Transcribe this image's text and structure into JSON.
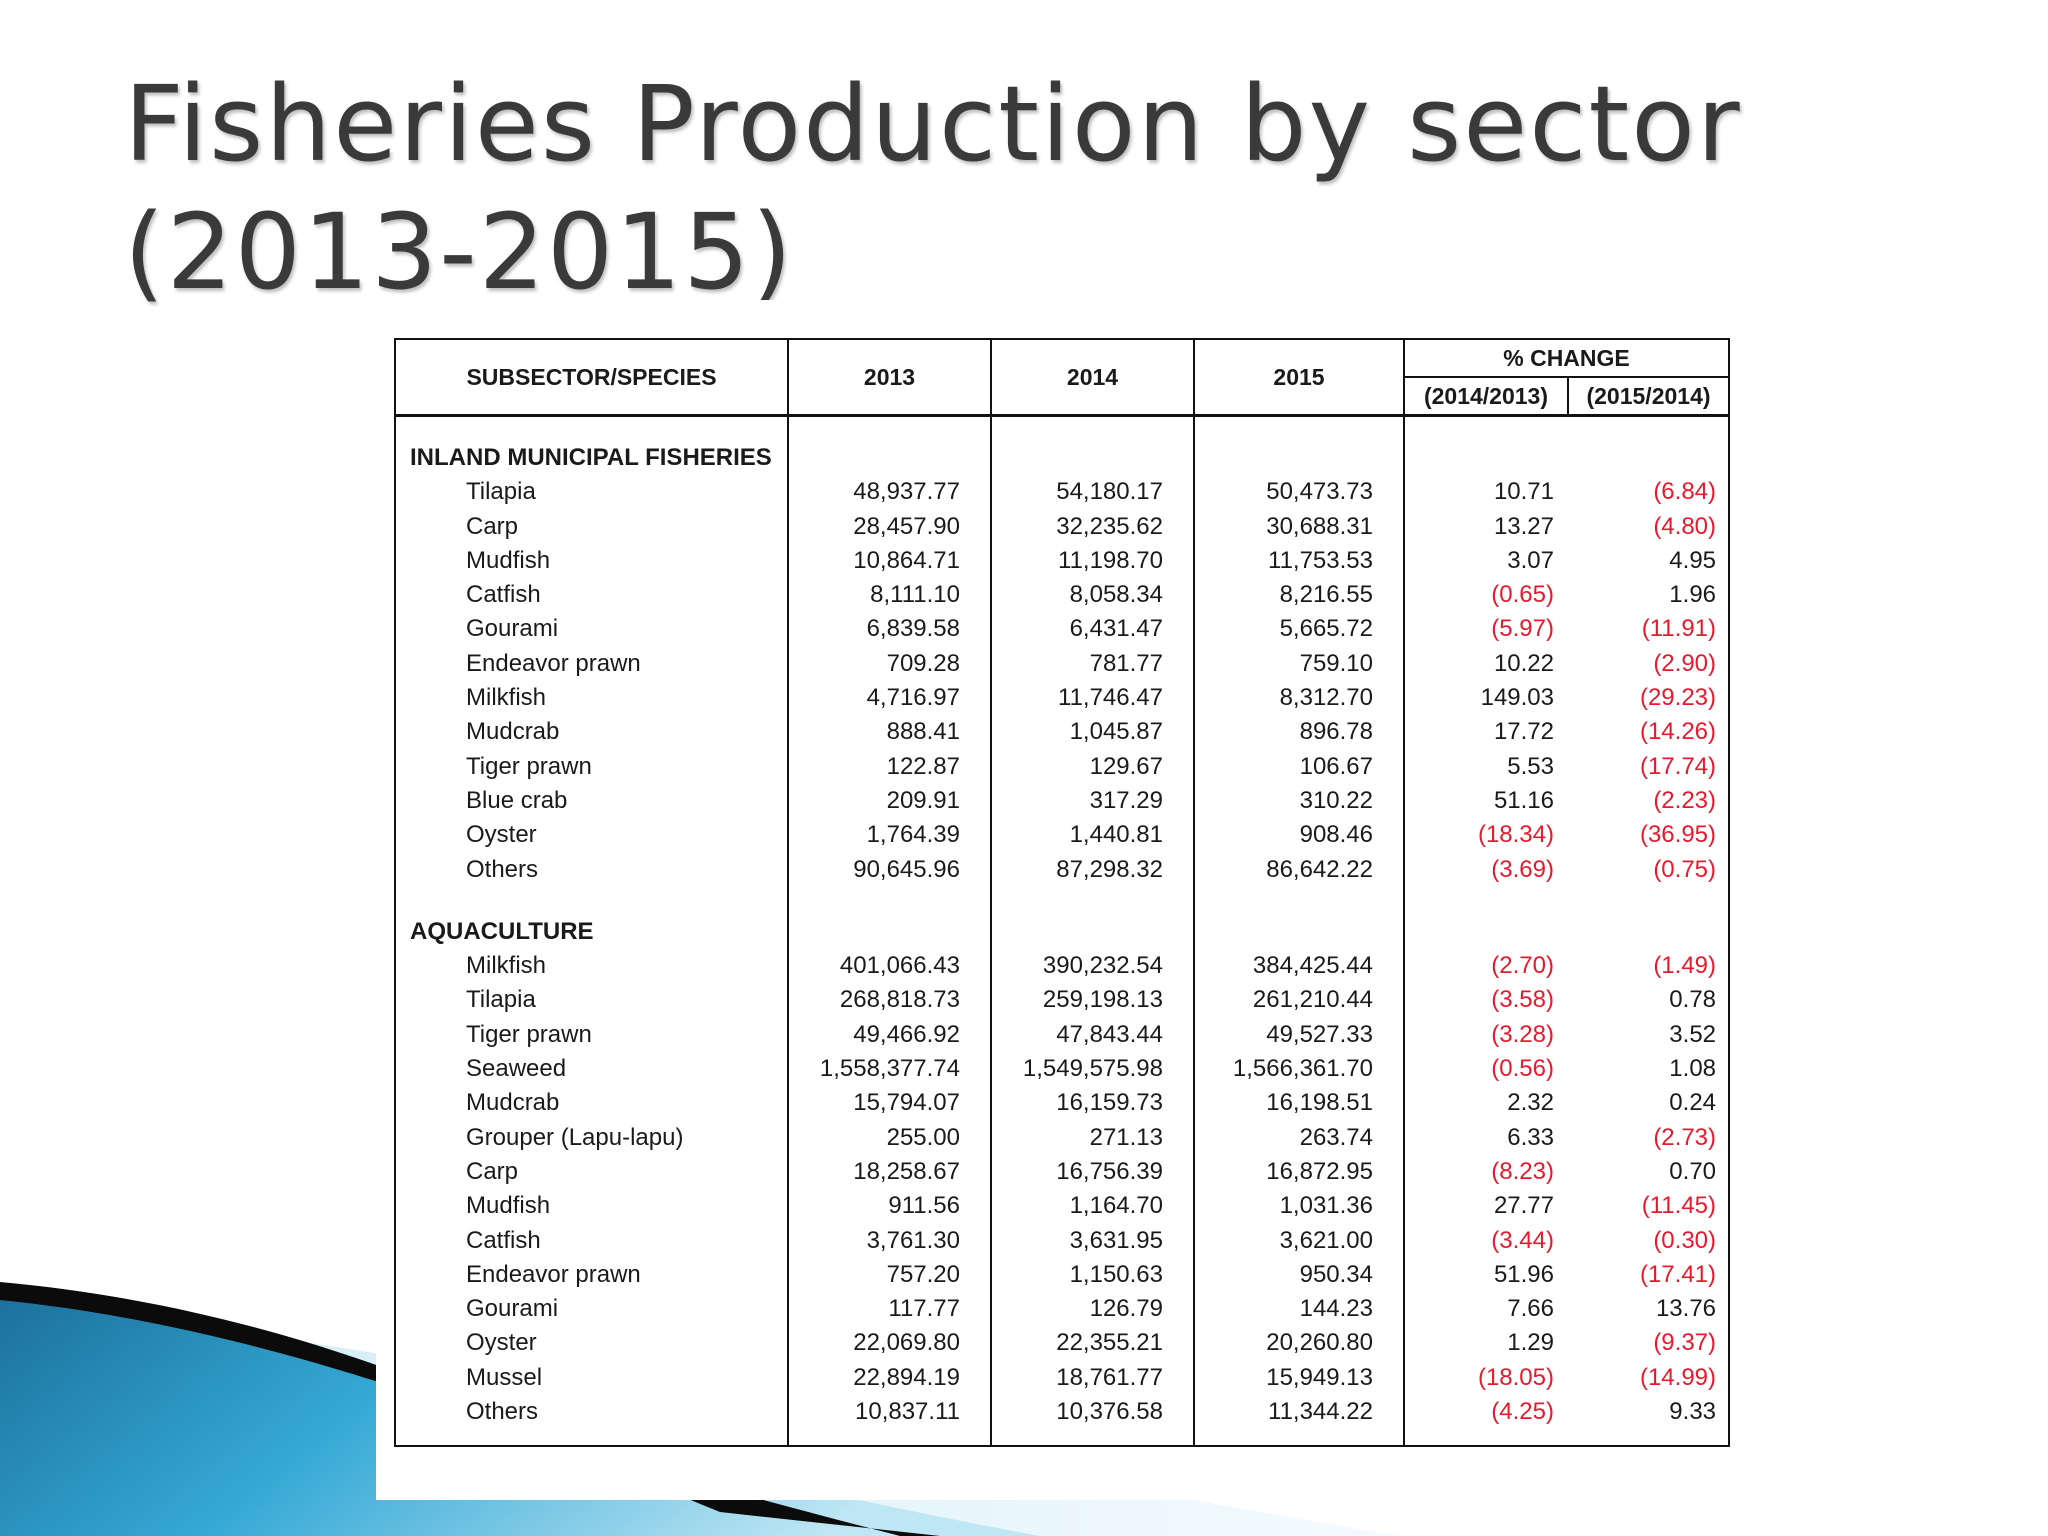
{
  "slide": {
    "title_line1": "Fisheries Production by sector",
    "title_line2": "(2013-2015)"
  },
  "table": {
    "headers": {
      "species": "SUBSECTOR/SPECIES",
      "y2013": "2013",
      "y2014": "2014",
      "y2015": "2015",
      "pct_change": "% CHANGE",
      "pct_2014": "(2014/2013)",
      "pct_2015": "(2015/2014)"
    },
    "sections": [
      {
        "title": "INLAND MUNICIPAL FISHERIES",
        "rows": [
          {
            "name": "Tilapia",
            "y2013": "48,937.77",
            "y2014": "54,180.17",
            "y2015": "50,473.73",
            "p1": "10.71",
            "p2": "(6.84)"
          },
          {
            "name": "Carp",
            "y2013": "28,457.90",
            "y2014": "32,235.62",
            "y2015": "30,688.31",
            "p1": "13.27",
            "p2": "(4.80)"
          },
          {
            "name": "Mudfish",
            "y2013": "10,864.71",
            "y2014": "11,198.70",
            "y2015": "11,753.53",
            "p1": "3.07",
            "p2": "4.95"
          },
          {
            "name": "Catfish",
            "y2013": "8,111.10",
            "y2014": "8,058.34",
            "y2015": "8,216.55",
            "p1": "(0.65)",
            "p2": "1.96"
          },
          {
            "name": "Gourami",
            "y2013": "6,839.58",
            "y2014": "6,431.47",
            "y2015": "5,665.72",
            "p1": "(5.97)",
            "p2": "(11.91)"
          },
          {
            "name": "Endeavor prawn",
            "y2013": "709.28",
            "y2014": "781.77",
            "y2015": "759.10",
            "p1": "10.22",
            "p2": "(2.90)"
          },
          {
            "name": "Milkfish",
            "y2013": "4,716.97",
            "y2014": "11,746.47",
            "y2015": "8,312.70",
            "p1": "149.03",
            "p2": "(29.23)"
          },
          {
            "name": "Mudcrab",
            "y2013": "888.41",
            "y2014": "1,045.87",
            "y2015": "896.78",
            "p1": "17.72",
            "p2": "(14.26)"
          },
          {
            "name": "Tiger prawn",
            "y2013": "122.87",
            "y2014": "129.67",
            "y2015": "106.67",
            "p1": "5.53",
            "p2": "(17.74)"
          },
          {
            "name": "Blue crab",
            "y2013": "209.91",
            "y2014": "317.29",
            "y2015": "310.22",
            "p1": "51.16",
            "p2": "(2.23)"
          },
          {
            "name": "Oyster",
            "y2013": "1,764.39",
            "y2014": "1,440.81",
            "y2015": "908.46",
            "p1": "(18.34)",
            "p2": "(36.95)"
          },
          {
            "name": "Others",
            "y2013": "90,645.96",
            "y2014": "87,298.32",
            "y2015": "86,642.22",
            "p1": "(3.69)",
            "p2": "(0.75)"
          }
        ]
      },
      {
        "title": "AQUACULTURE",
        "rows": [
          {
            "name": "Milkfish",
            "y2013": "401,066.43",
            "y2014": "390,232.54",
            "y2015": "384,425.44",
            "p1": "(2.70)",
            "p2": "(1.49)"
          },
          {
            "name": "Tilapia",
            "y2013": "268,818.73",
            "y2014": "259,198.13",
            "y2015": "261,210.44",
            "p1": "(3.58)",
            "p2": "0.78"
          },
          {
            "name": "Tiger prawn",
            "y2013": "49,466.92",
            "y2014": "47,843.44",
            "y2015": "49,527.33",
            "p1": "(3.28)",
            "p2": "3.52"
          },
          {
            "name": "Seaweed",
            "y2013": "1,558,377.74",
            "y2014": "1,549,575.98",
            "y2015": "1,566,361.70",
            "p1": "(0.56)",
            "p2": "1.08"
          },
          {
            "name": "Mudcrab",
            "y2013": "15,794.07",
            "y2014": "16,159.73",
            "y2015": "16,198.51",
            "p1": "2.32",
            "p2": "0.24"
          },
          {
            "name": "Grouper (Lapu-lapu)",
            "y2013": "255.00",
            "y2014": "271.13",
            "y2015": "263.74",
            "p1": "6.33",
            "p2": "(2.73)"
          },
          {
            "name": "Carp",
            "y2013": "18,258.67",
            "y2014": "16,756.39",
            "y2015": "16,872.95",
            "p1": "(8.23)",
            "p2": "0.70"
          },
          {
            "name": "Mudfish",
            "y2013": "911.56",
            "y2014": "1,164.70",
            "y2015": "1,031.36",
            "p1": "27.77",
            "p2": "(11.45)"
          },
          {
            "name": "Catfish",
            "y2013": "3,761.30",
            "y2014": "3,631.95",
            "y2015": "3,621.00",
            "p1": "(3.44)",
            "p2": "(0.30)"
          },
          {
            "name": "Endeavor prawn",
            "y2013": "757.20",
            "y2014": "1,150.63",
            "y2015": "950.34",
            "p1": "51.96",
            "p2": "(17.41)"
          },
          {
            "name": "Gourami",
            "y2013": "117.77",
            "y2014": "126.79",
            "y2015": "144.23",
            "p1": "7.66",
            "p2": "13.76"
          },
          {
            "name": "Oyster",
            "y2013": "22,069.80",
            "y2014": "22,355.21",
            "y2015": "20,260.80",
            "p1": "1.29",
            "p2": "(9.37)"
          },
          {
            "name": "Mussel",
            "y2013": "22,894.19",
            "y2014": "18,761.77",
            "y2015": "15,949.13",
            "p1": "(18.05)",
            "p2": "(14.99)"
          },
          {
            "name": "Others",
            "y2013": "10,837.11",
            "y2014": "10,376.58",
            "y2015": "11,344.22",
            "p1": "(4.25)",
            "p2": "9.33"
          }
        ]
      }
    ]
  },
  "colors": {
    "negative": "#e8192c",
    "title": "#3a3a3a",
    "accent_blue": "#2aa3d3"
  }
}
